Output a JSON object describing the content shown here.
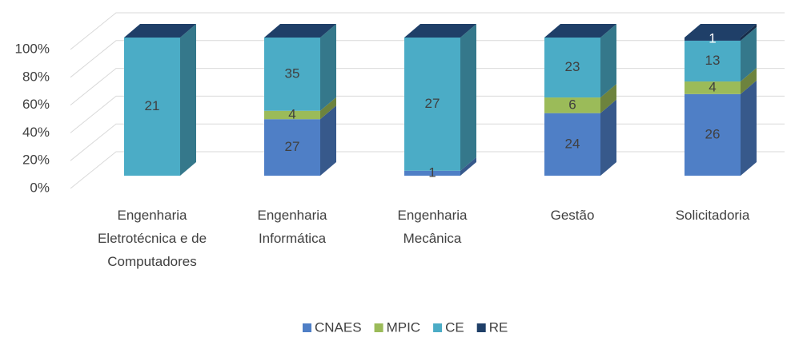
{
  "chart_data": {
    "type": "stacked_bar_100_3d",
    "categories": [
      "Engenharia Eletrotécnica e de Computadores",
      "Engenharia Informática",
      "Engenharia Mecânica",
      "Gestão",
      "Solicitadoria"
    ],
    "series": [
      {
        "name": "CNAES",
        "color": "#4f7fc6",
        "values": [
          0,
          27,
          1,
          24,
          26
        ]
      },
      {
        "name": "MPIC",
        "color": "#9bbb59",
        "values": [
          0,
          4,
          0,
          6,
          4
        ]
      },
      {
        "name": "CE",
        "color": "#4bacc6",
        "values": [
          21,
          35,
          27,
          23,
          13
        ]
      },
      {
        "name": "RE",
        "color": "#1f3f68",
        "values": [
          0,
          0,
          0,
          0,
          1
        ]
      }
    ],
    "ylim": [
      0,
      100
    ],
    "yticks": [
      {
        "value": 0,
        "label": "0%"
      },
      {
        "value": 20,
        "label": "20%"
      },
      {
        "value": 40,
        "label": "40%"
      },
      {
        "value": 60,
        "label": "60%"
      },
      {
        "value": 80,
        "label": "80%"
      },
      {
        "value": 100,
        "label": "100%"
      }
    ],
    "grid": true,
    "legend": "bottom"
  }
}
